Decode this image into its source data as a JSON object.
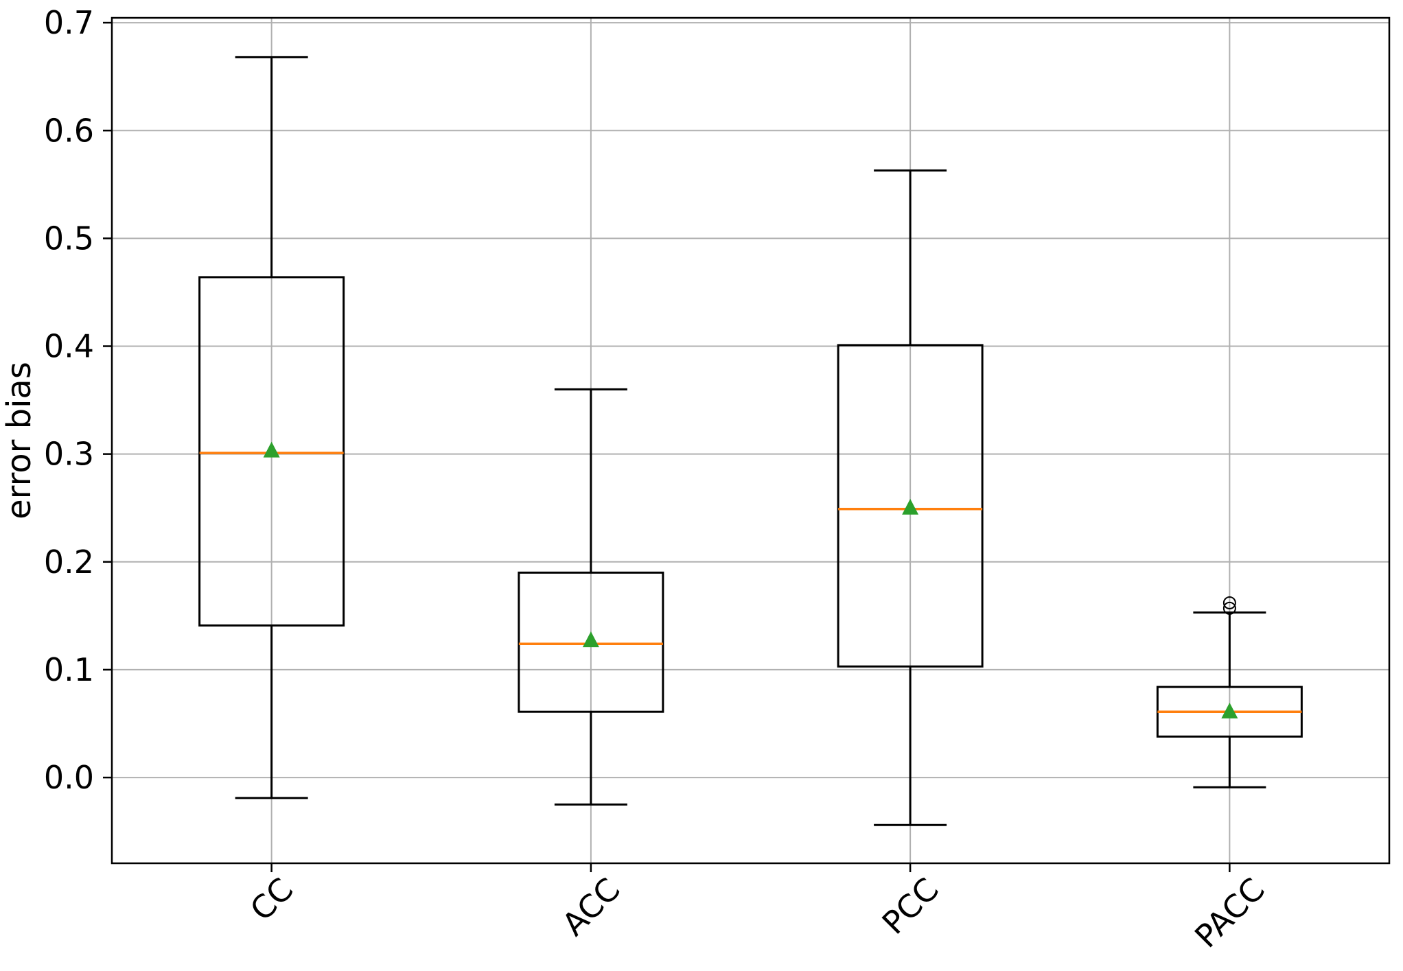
{
  "chart_data": {
    "type": "boxplot",
    "title": "",
    "xlabel": "",
    "ylabel": "error bias",
    "categories": [
      "CC",
      "ACC",
      "PCC",
      "PACC"
    ],
    "x_tick_rotation": 45,
    "ylim": [
      -0.0795,
      0.7045
    ],
    "yticks": [
      0.0,
      0.1,
      0.2,
      0.3,
      0.4,
      0.5,
      0.6,
      0.7
    ],
    "ytick_labels": [
      "0.0",
      "0.1",
      "0.2",
      "0.3",
      "0.4",
      "0.5",
      "0.6",
      "0.7"
    ],
    "grid": true,
    "legend": "none",
    "boxes": [
      {
        "category": "CC",
        "whisker_low": -0.019,
        "q1": 0.141,
        "median": 0.301,
        "q3": 0.464,
        "whisker_high": 0.668,
        "mean": 0.303,
        "outliers": []
      },
      {
        "category": "ACC",
        "whisker_low": -0.025,
        "q1": 0.061,
        "median": 0.124,
        "q3": 0.19,
        "whisker_high": 0.36,
        "mean": 0.127,
        "outliers": []
      },
      {
        "category": "PCC",
        "whisker_low": -0.044,
        "q1": 0.103,
        "median": 0.249,
        "q3": 0.401,
        "whisker_high": 0.563,
        "mean": 0.25,
        "outliers": []
      },
      {
        "category": "PACC",
        "whisker_low": -0.009,
        "q1": 0.038,
        "median": 0.061,
        "q3": 0.084,
        "whisker_high": 0.153,
        "mean": 0.061,
        "outliers": [
          0.157,
          0.162
        ]
      }
    ],
    "style": {
      "median_color": "#ff7f0e",
      "mean_marker_color": "#2ca02c",
      "mean_marker": "triangle-up",
      "outlier_marker": "open-circle",
      "box_color": "#000000",
      "grid_color": "#b0b0b0",
      "background": "#ffffff",
      "text_color": "#000000"
    }
  }
}
